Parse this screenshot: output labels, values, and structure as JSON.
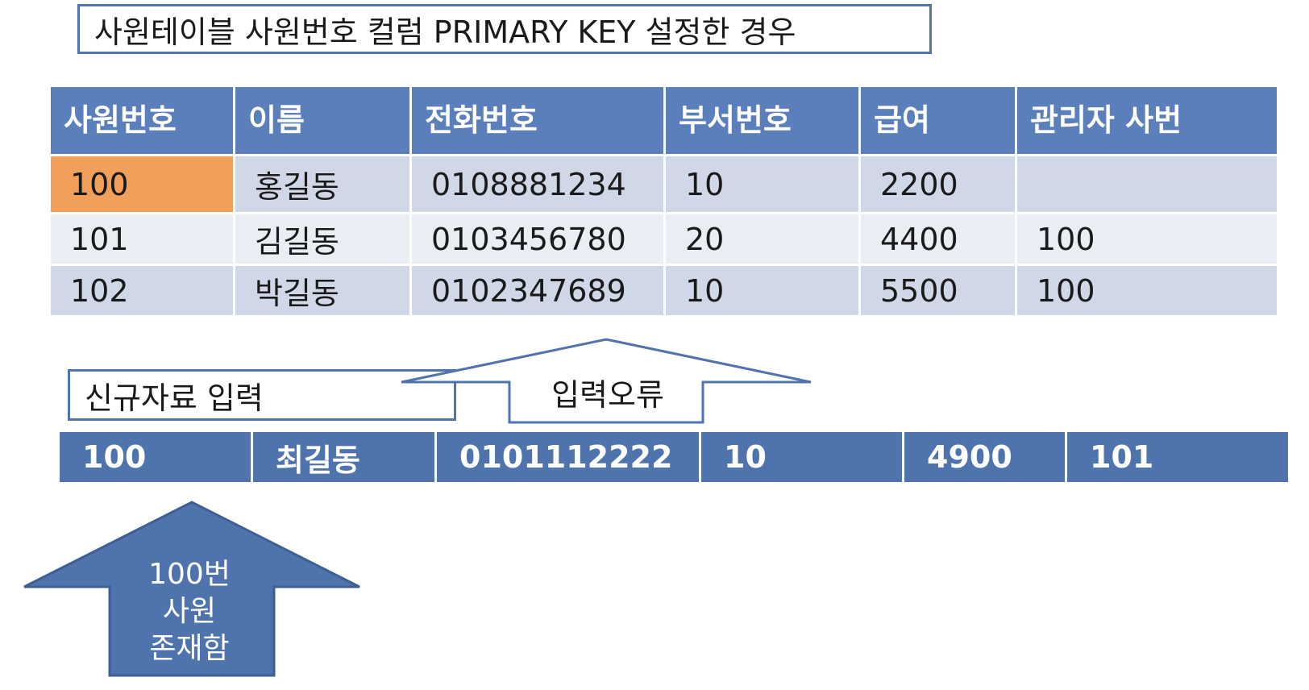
{
  "title": "사원테이블 사원번호 컬럼  PRIMARY KEY 설정한 경우",
  "table": {
    "headers": [
      "사원번호",
      "이름",
      "전화번호",
      "부서번호",
      "급여",
      "관리자 사번"
    ],
    "rows": [
      [
        "100",
        "홍길동",
        "0108881234",
        "10",
        "2200",
        ""
      ],
      [
        "101",
        "김길동",
        "0103456780",
        "20",
        "4400",
        "100"
      ],
      [
        "102",
        "박길동",
        "0102347689",
        "10",
        "5500",
        "100"
      ]
    ]
  },
  "new_entry": {
    "label": "신규자료 입력",
    "values": [
      "100",
      "최길동",
      "0101112222",
      "10",
      "4900",
      "101"
    ]
  },
  "error_label": "입력오류",
  "exists_label": [
    "100번",
    "사원",
    "존재함"
  ],
  "colors": {
    "header_fill": "#5b7fbb",
    "row_dark": "#d0d8e8",
    "row_light": "#e9edf4",
    "pk_highlight": "#f0a05a",
    "arrow_fill": "#4f74ad"
  }
}
